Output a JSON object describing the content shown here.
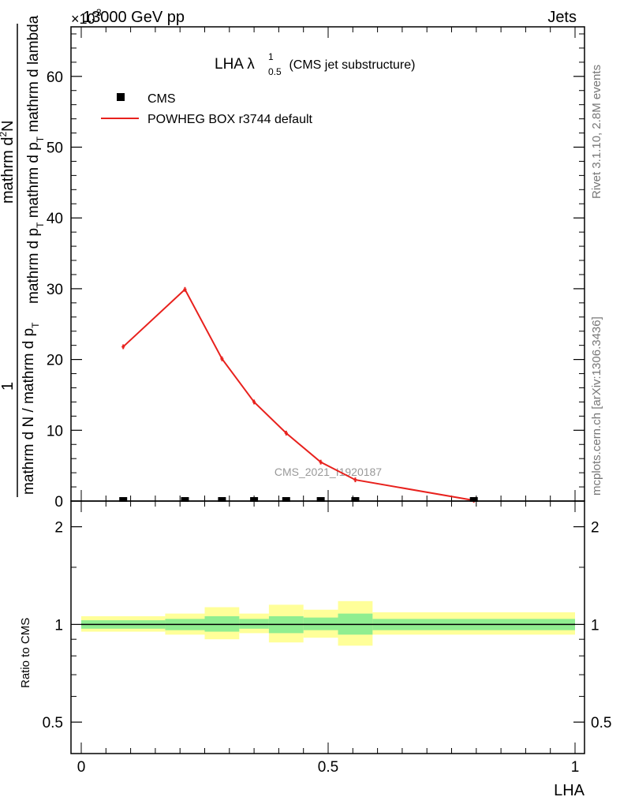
{
  "header": {
    "left_label": "13000 GeV pp",
    "right_label": "Jets",
    "exponent_label": "×10",
    "exponent_power": "-3"
  },
  "side_labels": {
    "rivet": "Rivet 3.1.10,  2.8M events",
    "mcplots": "mcplots.cern.ch [arXiv:1306.3436]"
  },
  "chart_data": {
    "type": "line",
    "title_main": "LHA λ",
    "title_sup": "1",
    "title_sub": "0.5",
    "title_rest": " (CMS jet substructure)",
    "watermark": "CMS_2021_I1920187",
    "xlabel": "LHA",
    "ylabel_numerator": "1",
    "ylabel_denominator_line1": "mathrm d N / mathrm d p",
    "ylabel_denominator_sub1": "T",
    "ylabel_denominator_line1b": " mathrm d p",
    "ylabel_denominator_sub2": "T",
    "ylabel_denominator_line1c": " mathrm d lambda",
    "ylabel_top": "mathrm d",
    "ylabel_top_sup": "2",
    "ylabel_top_rest": "N",
    "xlim": [
      0,
      1
    ],
    "ylim": [
      0,
      67
    ],
    "y_ticks": [
      0,
      10,
      20,
      30,
      40,
      50,
      60
    ],
    "x_ticks": [
      0,
      0.5,
      1
    ],
    "x_tick_labels": [
      "0",
      "0.5",
      "1"
    ],
    "legend": [
      {
        "name": "CMS",
        "style": "marker",
        "color": "#000000"
      },
      {
        "name": "POWHEG BOX r3744 default",
        "style": "line",
        "color": "#e8211d"
      }
    ],
    "cms_points": {
      "x": [
        0.085,
        0.21,
        0.285,
        0.35,
        0.415,
        0.485,
        0.555,
        0.795
      ],
      "y": [
        0,
        0,
        0,
        0,
        0,
        0,
        0,
        0
      ]
    },
    "series": [
      {
        "name": "POWHEG BOX r3744 default",
        "x": [
          0.085,
          0.21,
          0.285,
          0.35,
          0.415,
          0.485,
          0.555,
          0.795
        ],
        "values": [
          21.8,
          29.9,
          20.1,
          14.0,
          9.6,
          5.5,
          3.0,
          0.1
        ]
      }
    ],
    "ratio": {
      "ylabel": "Ratio to CMS",
      "ylim": [
        0.4,
        2.4
      ],
      "y_ticks": [
        0.5,
        1,
        2
      ],
      "y_tick_labels": [
        "0.5",
        "1",
        "2"
      ],
      "bins": [
        {
          "x0": 0.0,
          "x1": 0.17,
          "green_lo": 0.97,
          "green_hi": 1.03,
          "yellow_lo": 0.95,
          "yellow_hi": 1.06
        },
        {
          "x0": 0.17,
          "x1": 0.25,
          "green_lo": 0.96,
          "green_hi": 1.04,
          "yellow_lo": 0.93,
          "yellow_hi": 1.08
        },
        {
          "x0": 0.25,
          "x1": 0.32,
          "green_lo": 0.95,
          "green_hi": 1.06,
          "yellow_lo": 0.9,
          "yellow_hi": 1.13
        },
        {
          "x0": 0.32,
          "x1": 0.38,
          "green_lo": 0.97,
          "green_hi": 1.04,
          "yellow_lo": 0.94,
          "yellow_hi": 1.08
        },
        {
          "x0": 0.38,
          "x1": 0.45,
          "green_lo": 0.94,
          "green_hi": 1.06,
          "yellow_lo": 0.88,
          "yellow_hi": 1.15
        },
        {
          "x0": 0.45,
          "x1": 0.52,
          "green_lo": 0.96,
          "green_hi": 1.05,
          "yellow_lo": 0.91,
          "yellow_hi": 1.11
        },
        {
          "x0": 0.52,
          "x1": 0.59,
          "green_lo": 0.93,
          "green_hi": 1.08,
          "yellow_lo": 0.86,
          "yellow_hi": 1.18
        },
        {
          "x0": 0.59,
          "x1": 1.0,
          "green_lo": 0.96,
          "green_hi": 1.04,
          "yellow_lo": 0.93,
          "yellow_hi": 1.09
        }
      ],
      "green_color": "#90ee90",
      "yellow_color": "#ffff99"
    }
  }
}
